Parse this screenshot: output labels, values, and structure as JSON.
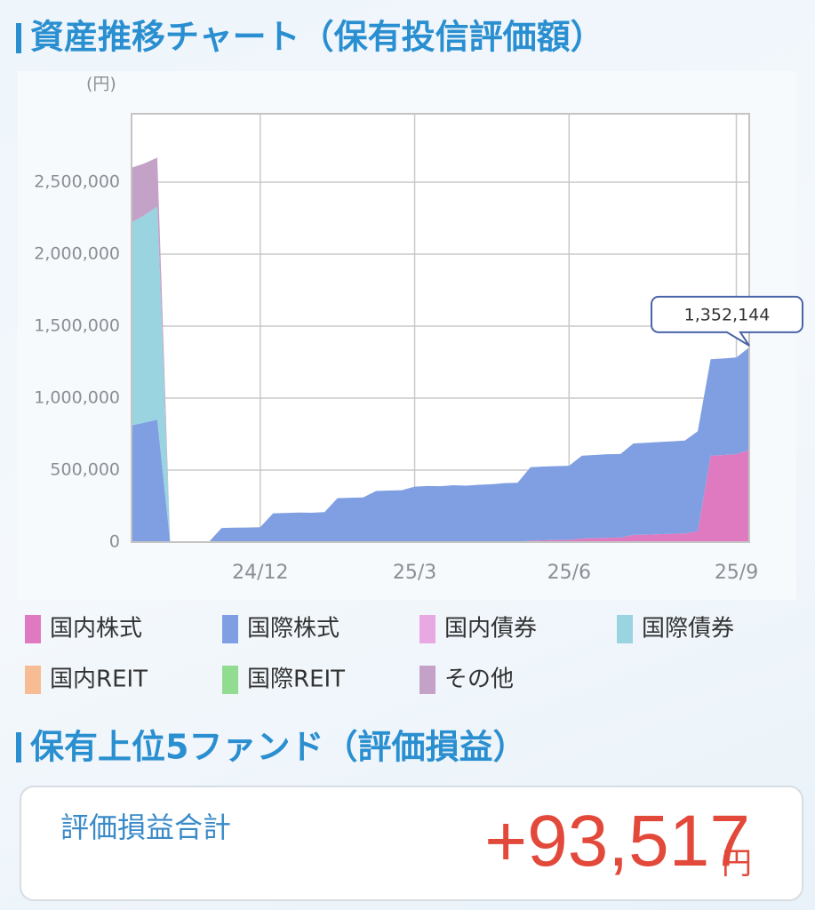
{
  "chart_data": {
    "type": "area",
    "title": "資産推移チャート（保有投信評価額）",
    "y_unit": "(円)",
    "categories": [
      null,
      null,
      null,
      null,
      null,
      null,
      null,
      null,
      null,
      null,
      "24/12",
      null,
      null,
      null,
      null,
      null,
      null,
      null,
      null,
      null,
      null,
      null,
      "25/3",
      null,
      null,
      null,
      null,
      null,
      null,
      null,
      null,
      null,
      null,
      null,
      "25/6",
      null,
      null,
      null,
      null,
      null,
      null,
      null,
      null,
      null,
      null,
      null,
      null,
      "25/9",
      null
    ],
    "ylim": [
      0,
      2975000
    ],
    "yticks": [
      0,
      {
        "value": 500000,
        "label": "500,000"
      },
      {
        "value": 1000000,
        "label": "1,000,000"
      },
      {
        "value": 1500000,
        "label": "1,500,000"
      },
      {
        "value": 2000000,
        "label": "2,000,000"
      },
      {
        "value": 2500000,
        "label": "2,500,000"
      }
    ],
    "grid": true,
    "stacked": true,
    "series": [
      {
        "name": "国内株式",
        "color": "#e07ac0",
        "values": [
          0,
          0,
          0,
          0,
          0,
          0,
          0,
          0,
          0,
          0,
          0,
          0,
          0,
          0,
          0,
          0,
          0,
          0,
          0,
          0,
          0,
          0,
          0,
          0,
          0,
          0,
          0,
          0,
          0,
          0,
          0,
          10000,
          12000,
          15000,
          15000,
          25000,
          28000,
          30000,
          32000,
          50000,
          52000,
          55000,
          58000,
          60000,
          75000,
          600000,
          605000,
          610000,
          640000
        ]
      },
      {
        "name": "国際株式",
        "color": "#7f9fe2",
        "values": [
          810000,
          830000,
          850000,
          0,
          0,
          0,
          0,
          98000,
          100000,
          101000,
          103000,
          200000,
          202000,
          205000,
          204000,
          208000,
          305000,
          308000,
          310000,
          355000,
          358000,
          360000,
          385000,
          390000,
          388000,
          395000,
          392000,
          398000,
          402000,
          410000,
          412000,
          510000,
          513000,
          513000,
          515000,
          575000,
          577000,
          580000,
          580000,
          635000,
          638000,
          640000,
          642000,
          645000,
          695000,
          670000,
          670000,
          672000,
          712144
        ]
      },
      {
        "name": "国内債券",
        "color": "#e8a8e2",
        "values": [
          0,
          0,
          0,
          0,
          0,
          0,
          0,
          0,
          0,
          0,
          0,
          0,
          0,
          0,
          0,
          0,
          0,
          0,
          0,
          0,
          0,
          0,
          0,
          0,
          0,
          0,
          0,
          0,
          0,
          0,
          0,
          0,
          0,
          0,
          0,
          0,
          0,
          0,
          0,
          0,
          0,
          0,
          0,
          0,
          0,
          0,
          0,
          0,
          0
        ]
      },
      {
        "name": "国際債券",
        "color": "#9ad4e0",
        "values": [
          1410000,
          1440000,
          1480000,
          0,
          0,
          0,
          0,
          0,
          0,
          0,
          0,
          0,
          0,
          0,
          0,
          0,
          0,
          0,
          0,
          0,
          0,
          0,
          0,
          0,
          0,
          0,
          0,
          0,
          0,
          0,
          0,
          0,
          0,
          0,
          0,
          0,
          0,
          0,
          0,
          0,
          0,
          0,
          0,
          0,
          0,
          0,
          0,
          0,
          0
        ]
      },
      {
        "name": "国内REIT",
        "color": "#f8bc94",
        "values": [
          0,
          0,
          0,
          0,
          0,
          0,
          0,
          0,
          0,
          0,
          0,
          0,
          0,
          0,
          0,
          0,
          0,
          0,
          0,
          0,
          0,
          0,
          0,
          0,
          0,
          0,
          0,
          0,
          0,
          0,
          0,
          0,
          0,
          0,
          0,
          0,
          0,
          0,
          0,
          0,
          0,
          0,
          0,
          0,
          0,
          0,
          0,
          0,
          0
        ]
      },
      {
        "name": "国際REIT",
        "color": "#92dc92",
        "values": [
          0,
          0,
          0,
          0,
          0,
          0,
          0,
          0,
          0,
          0,
          0,
          0,
          0,
          0,
          0,
          0,
          0,
          0,
          0,
          0,
          0,
          0,
          0,
          0,
          0,
          0,
          0,
          0,
          0,
          0,
          0,
          0,
          0,
          0,
          0,
          0,
          0,
          0,
          0,
          0,
          0,
          0,
          0,
          0,
          0,
          0,
          0,
          0,
          0
        ]
      },
      {
        "name": "その他",
        "color": "#c4a2c8",
        "values": [
          380000,
          360000,
          340000,
          0,
          0,
          0,
          0,
          0,
          0,
          0,
          0,
          0,
          0,
          0,
          0,
          0,
          0,
          0,
          0,
          0,
          0,
          0,
          0,
          0,
          0,
          0,
          0,
          0,
          0,
          0,
          0,
          0,
          0,
          0,
          0,
          0,
          0,
          0,
          0,
          0,
          0,
          0,
          0,
          0,
          0,
          0,
          0,
          0,
          0
        ]
      }
    ],
    "annotations": [
      {
        "text": "1,352,144"
      }
    ]
  },
  "section_title": "保有上位5ファンド（評価損益）",
  "summary": {
    "label": "評価損益合計",
    "value": "+93,517",
    "unit": "円"
  }
}
